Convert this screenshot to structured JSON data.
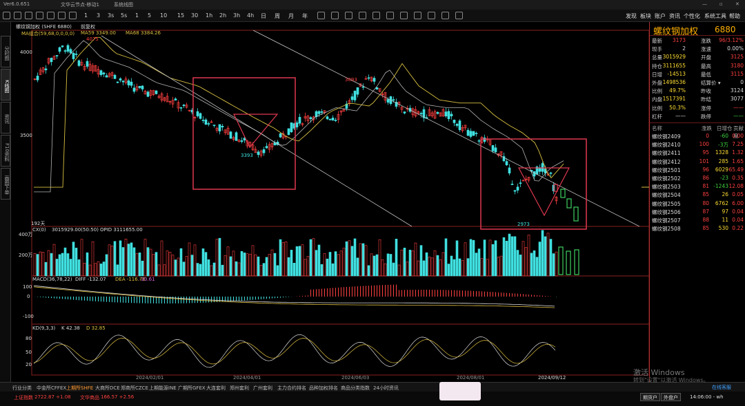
{
  "titlebar": {
    "app": "Ver6.0.651",
    "item1": "文华云节点-移动1",
    "item2": "系统线图"
  },
  "toolbar": {
    "periods": [
      "1",
      "5",
      "10",
      "15",
      "30",
      "1h",
      "2h",
      "3h",
      "4h",
      "日",
      "周",
      "月",
      "年"
    ],
    "left_labels": [
      "1",
      "3",
      "3s",
      "5s",
      "10s",
      "15s",
      "30s"
    ],
    "right_menu": [
      "发现",
      "板块",
      "账户",
      "资讯",
      "个性化",
      "系统工具",
      "帮助"
    ]
  },
  "sidebar": {
    "tabs": [
      "分时图",
      "K线图",
      "资讯",
      "F10资料",
      "画图下单"
    ],
    "active": 1
  },
  "chart": {
    "instrument_label": "螺纹钢加权 (SHFE 6880)",
    "mode_label": "前复权",
    "ma_label_1": "MA组合(59,68,0,0,0,0)",
    "ma_label_2": "MA59 3349.00",
    "ma_label_3": "MA68 3384.26",
    "y_ticks": [
      "4000",
      "3500"
    ],
    "annot_high": "4075",
    "annot_low1": "3393",
    "annot_mid": "3893",
    "annot_low2": "2973",
    "days_label": "192天",
    "vol_label_1": "CX(0)",
    "vol_label_2": "3015929.00(50:50)",
    "vol_label_3": "OPID 3111655.00",
    "vol_ticks": [
      "400万",
      "200万"
    ],
    "macd_label_1": "MACD(36,78,22)",
    "macd_label_2": "DIFF -132.07",
    "macd_label_3": "DEA -116.76",
    "macd_label_4": "-30.61",
    "macd_ticks": [
      "100",
      "0",
      "-100"
    ],
    "kd_label_1": "KD(9,3,3)",
    "kd_label_2": "K 42.38",
    "kd_label_3": "D 32.85",
    "kd_ticks": [
      "80",
      "50",
      "20"
    ],
    "dates": [
      "2024/02/01",
      "2024/04/01",
      "2024/06/03",
      "2024/08/01",
      "2024/09/12"
    ]
  },
  "quote": {
    "title": "螺纹钢加权",
    "code": "6880",
    "rows": [
      {
        "l1": "最新",
        "v1": "3173",
        "l2": "涨跌",
        "v2": "96/3.12%",
        "c1": "#ff4040",
        "c2": "#ff4040"
      },
      {
        "l1": "现手",
        "v1": "2",
        "l2": "涨速",
        "v2": "0.00%",
        "c1": "#ddd",
        "c2": "#ddd"
      },
      {
        "l1": "总量",
        "v1": "3015929",
        "l2": "开盘",
        "v2": "3125",
        "c1": "#ffdd33",
        "c2": "#ff4040"
      },
      {
        "l1": "持仓",
        "v1": "3111655",
        "l2": "最高",
        "v2": "3180",
        "c1": "#ffdd33",
        "c2": "#ff4040"
      },
      {
        "l1": "日增",
        "v1": "-14513",
        "l2": "最低",
        "v2": "3115",
        "c1": "#ffdd33",
        "c2": "#ff4040"
      },
      {
        "l1": "外盘",
        "v1": "1498536",
        "l2": "结算价 ▾",
        "v2": "0",
        "c1": "#ffdd33",
        "c2": "#ddd"
      },
      {
        "l1": "比例",
        "v1": "49.7%",
        "l2": "昨收",
        "v2": "3124",
        "c1": "#ffdd33",
        "c2": "#ddd"
      },
      {
        "l1": "内盘",
        "v1": "1517391",
        "l2": "昨结",
        "v2": "3077",
        "c1": "#ffdd33",
        "c2": "#ddd"
      },
      {
        "l1": "比例",
        "v1": "50.3%",
        "l2": "涨停",
        "v2": "——",
        "c1": "#ffdd33",
        "c2": "#ff4040"
      },
      {
        "l1": "杠杆",
        "v1": "——",
        "l2": "跌停",
        "v2": "——",
        "c1": "#ddd",
        "c2": "#40d040"
      }
    ],
    "contract_headers": [
      "名称",
      "涨跌",
      "日增仓",
      "贡献度"
    ],
    "contracts": [
      {
        "name": "螺纹钢2409",
        "chg": "0",
        "inc": "-60",
        "contrib": "0.00",
        "cc": "#ff4040"
      },
      {
        "name": "螺纹钢2410",
        "chg": "100",
        "inc": "-3万",
        "contrib": "7.25",
        "cc": "#ff4040"
      },
      {
        "name": "螺纹钢2411",
        "chg": "95",
        "inc": "1328",
        "contrib": "1.32",
        "cc": "#ff4040"
      },
      {
        "name": "螺纹钢2412",
        "chg": "101",
        "inc": "285",
        "contrib": "1.65",
        "cc": "#ff4040"
      },
      {
        "name": "螺纹钢2501",
        "chg": "96",
        "inc": "6029",
        "contrib": "65.49",
        "cc": "#ff4040"
      },
      {
        "name": "螺纹钢2502",
        "chg": "86",
        "inc": "-23",
        "contrib": "0.35",
        "cc": "#ff4040"
      },
      {
        "name": "螺纹钢2503",
        "chg": "81",
        "inc": "-1243",
        "contrib": "12.08",
        "cc": "#ff4040"
      },
      {
        "name": "螺纹钢2504",
        "chg": "85",
        "inc": "26",
        "contrib": "0.05",
        "cc": "#ff4040"
      },
      {
        "name": "螺纹钢2505",
        "chg": "80",
        "inc": "6762",
        "contrib": "6.00",
        "cc": "#ff4040"
      },
      {
        "name": "螺纹钢2506",
        "chg": "87",
        "inc": "97",
        "contrib": "0.04",
        "cc": "#ff4040"
      },
      {
        "name": "螺纹钢2507",
        "chg": "88",
        "inc": "11",
        "contrib": "0.04",
        "cc": "#ff4040"
      },
      {
        "name": "螺纹钢2508",
        "chg": "85",
        "inc": "530",
        "contrib": "0.22",
        "cc": "#ff4040"
      }
    ]
  },
  "bottom_tabs": [
    "行业分类",
    "中金所CFFEX",
    "上期所SHFE",
    "大商所DCE",
    "郑商所CZCE",
    "上期能源INE",
    "广期所GFEX",
    "大连套利",
    "郑州套利",
    "广州套利",
    "主力合约排名",
    "品种加权排名",
    "商品分类指数",
    "24小时资讯"
  ],
  "bottom_active": 2,
  "status": {
    "index1": "上证指数",
    "index1_val": "2722.87 +1.08",
    "index2": "文华商品",
    "index2_val": "166.57 +2.56",
    "btn1": "期货户",
    "btn2": "外盘户",
    "time": "14:06:00 - wh",
    "online": "在线客服"
  },
  "watermark": {
    "line1": "激活 Windows",
    "line2": "转到\"设置\"以激活 Windows。"
  },
  "colors": {
    "up": "#ff4040",
    "down": "#40e0e0",
    "ma1": "#e0e0e0",
    "ma2": "#d8c040",
    "box": "#e03850",
    "trend": "#c0c0c0"
  }
}
